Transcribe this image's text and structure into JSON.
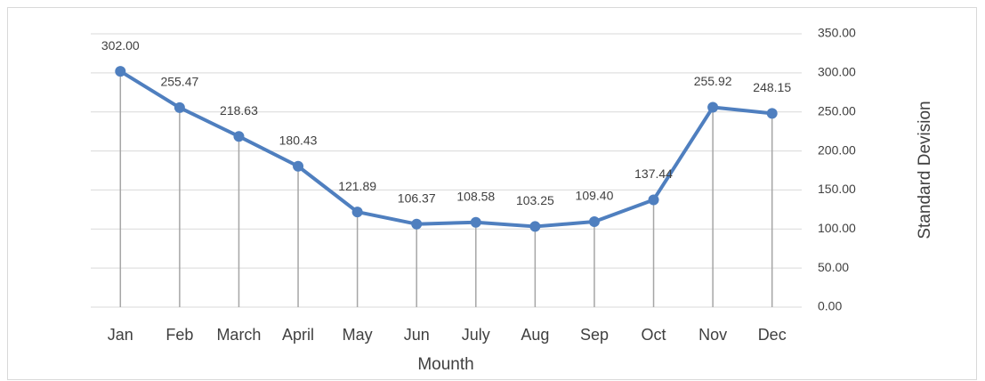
{
  "chart_data": {
    "type": "line",
    "x_label": "Mounth",
    "y_label": "Standard Devision",
    "categories": [
      "Jan",
      "Feb",
      "March",
      "April",
      "May",
      "Jun",
      "July",
      "Aug",
      "Sep",
      "Oct",
      "Nov",
      "Dec"
    ],
    "values": [
      302.0,
      255.47,
      218.63,
      180.43,
      121.89,
      106.37,
      108.58,
      103.25,
      109.4,
      137.44,
      255.92,
      248.15
    ],
    "value_labels": [
      "302.00",
      "255.47",
      "218.63",
      "180.43",
      "121.89",
      "106.37",
      "108.58",
      "103.25",
      "109.40",
      "137.44",
      "255.92",
      "248.15"
    ],
    "color": "#4f7fbf",
    "drop_lines": true,
    "y_axis_side": "right",
    "ylim": [
      0,
      350
    ],
    "yticks": [
      {
        "value": 0,
        "label": "0.00"
      },
      {
        "value": 50,
        "label": "50.00"
      },
      {
        "value": 100,
        "label": "100.00"
      },
      {
        "value": 150,
        "label": "150.00"
      },
      {
        "value": 200,
        "label": "200.00"
      },
      {
        "value": 250,
        "label": "250.00"
      },
      {
        "value": 300,
        "label": "300.00"
      },
      {
        "value": 350,
        "label": "350.00"
      }
    ],
    "grid": true
  }
}
